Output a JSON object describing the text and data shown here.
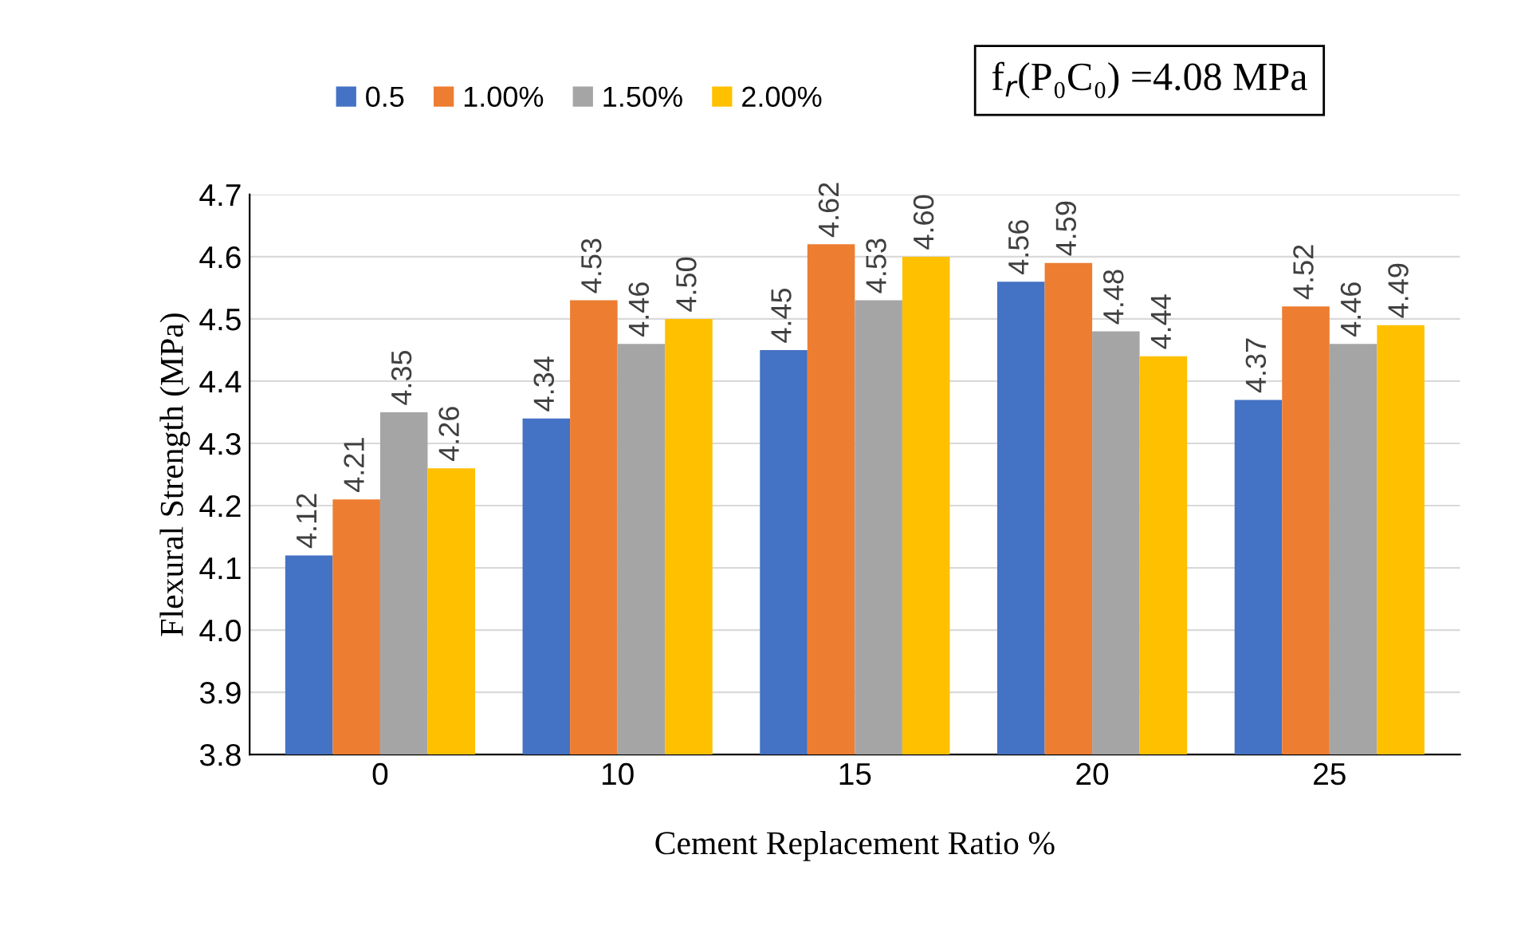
{
  "chart_data": {
    "type": "bar",
    "xlabel": "Cement Replacement Ratio %",
    "ylabel": "Flexural Strength (MPa)",
    "categories": [
      "0",
      "10",
      "15",
      "20",
      "25"
    ],
    "series": [
      {
        "name": "0.5",
        "color": "#4472c4",
        "values": [
          4.12,
          4.34,
          4.45,
          4.56,
          4.37
        ],
        "value_labels": [
          "4.12",
          "4.34",
          "4.45",
          "4.56",
          "4.37"
        ]
      },
      {
        "name": "1.00%",
        "color": "#ed7d31",
        "values": [
          4.21,
          4.53,
          4.62,
          4.59,
          4.52
        ],
        "value_labels": [
          "4.21",
          "4.53",
          "4.62",
          "4.59",
          "4.52"
        ]
      },
      {
        "name": "1.50%",
        "color": "#a5a5a5",
        "values": [
          4.35,
          4.46,
          4.53,
          4.48,
          4.46
        ],
        "value_labels": [
          "4.35",
          "4.46",
          "4.53",
          "4.48",
          "4.46"
        ]
      },
      {
        "name": "2.00%",
        "color": "#ffc000",
        "values": [
          4.26,
          4.5,
          4.6,
          4.44,
          4.49
        ],
        "value_labels": [
          "4.26",
          "4.50",
          "4.60",
          "4.44",
          "4.49"
        ]
      }
    ],
    "ylim": [
      3.8,
      4.7
    ],
    "yticks": [
      3.8,
      3.9,
      {
        "value": 4.0,
        "label": "4.0"
      },
      4.1,
      4.2,
      4.3,
      4.4,
      4.5,
      4.6,
      4.7
    ],
    "grid": "y",
    "legend": "top",
    "annotations": [
      "f$_{r}$(P₀C₀) =4.08 MPa"
    ]
  }
}
